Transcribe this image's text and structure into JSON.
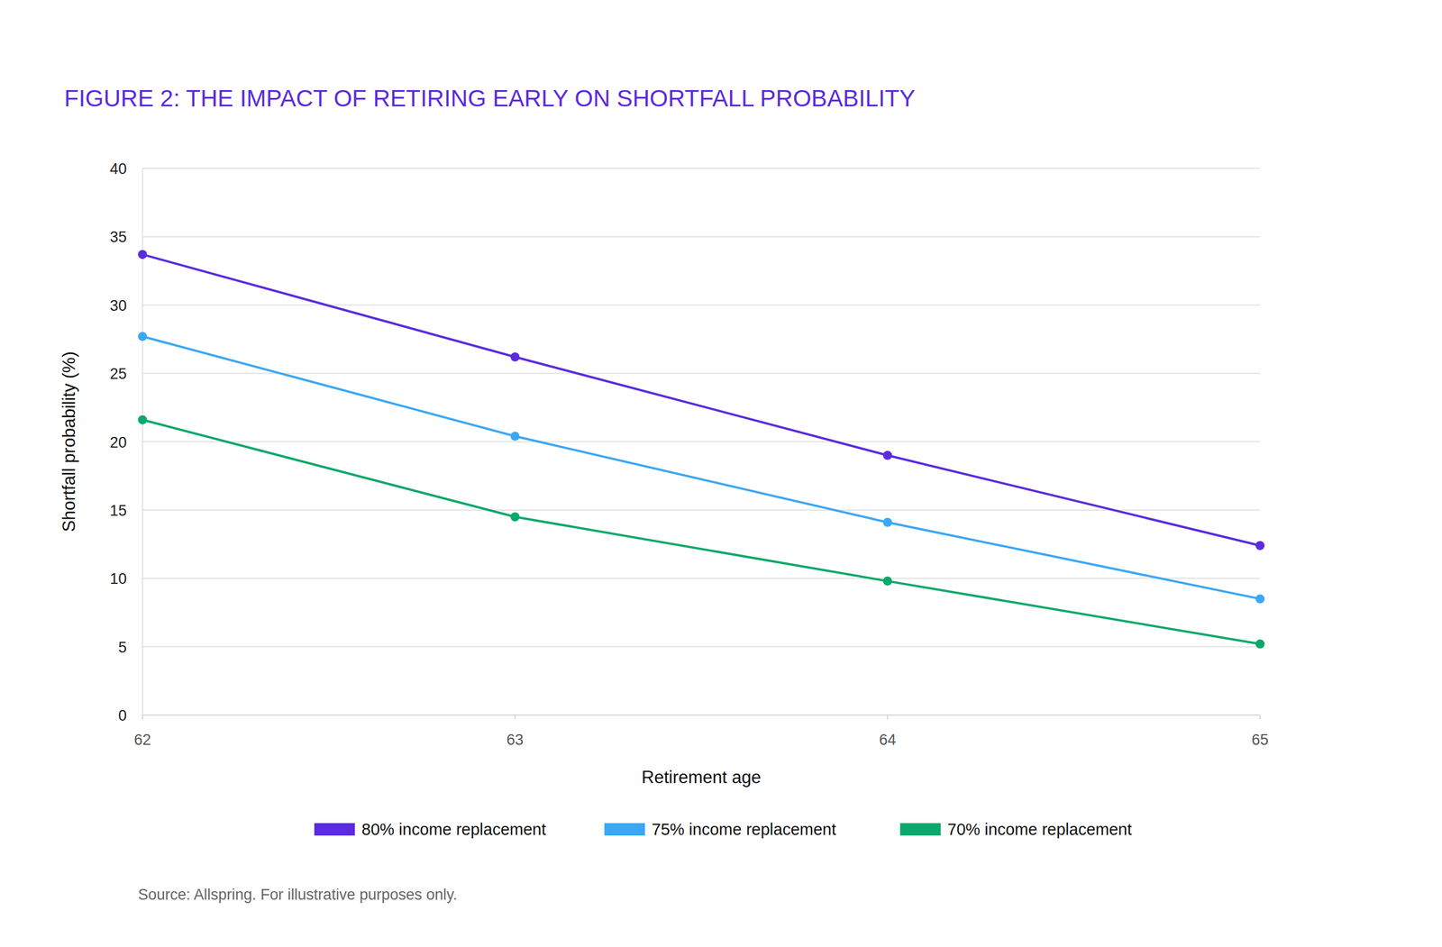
{
  "chart_data": {
    "type": "line",
    "title": "FIGURE 2: THE IMPACT OF RETIRING EARLY ON SHORTFALL PROBABILITY",
    "x_label": "Retirement age",
    "y_label": "Shortfall probability (%)",
    "source": "Source: Allspring. For illustrative purposes only.",
    "x": [
      62,
      63,
      64,
      65
    ],
    "xlim": [
      62,
      65
    ],
    "xticks": [
      62,
      63,
      64,
      65
    ],
    "ylim": [
      0,
      40
    ],
    "yticks": [
      0,
      5,
      10,
      15,
      20,
      25,
      30,
      35,
      40
    ],
    "grid": true,
    "legend": "bottom",
    "marker": "circle",
    "series": [
      {
        "name": "80% income replacement",
        "color": "#5b2be0",
        "values": [
          33.7,
          26.2,
          19.0,
          12.4
        ]
      },
      {
        "name": "75% income replacement",
        "color": "#3ba8f5",
        "values": [
          27.7,
          20.4,
          14.1,
          8.5
        ]
      },
      {
        "name": "70% income replacement",
        "color": "#0aa86a",
        "values": [
          21.6,
          14.5,
          9.8,
          5.2
        ]
      }
    ]
  }
}
